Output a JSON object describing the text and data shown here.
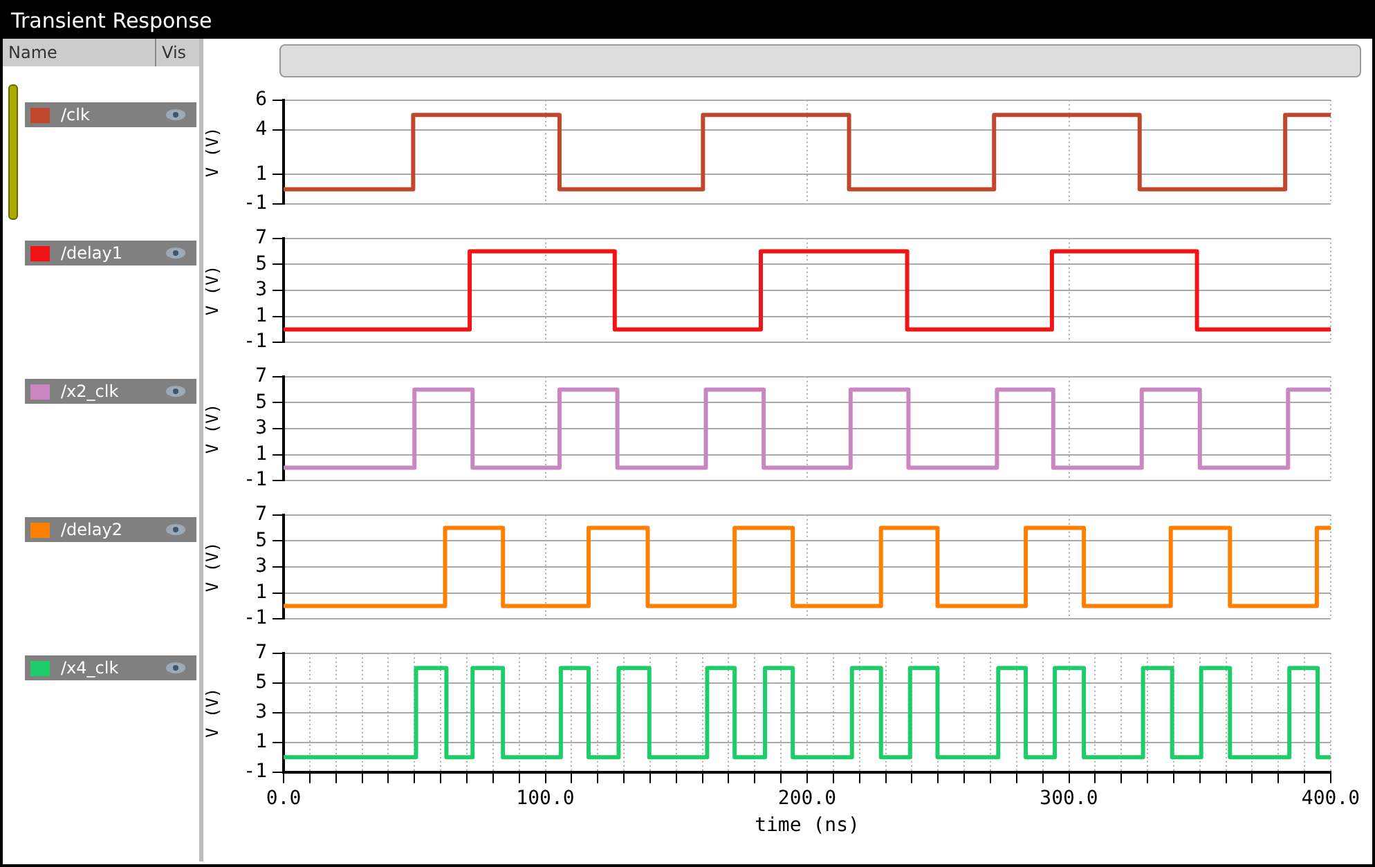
{
  "chart_data": [
    {
      "type": "step",
      "title": "Transient Response",
      "annotations": [
        "Name",
        "Vis"
      ],
      "ylabel": "V (V)",
      "xlim": [
        0,
        400
      ],
      "xticks": [
        0,
        100,
        200,
        300,
        400
      ],
      "ylim": [
        -1,
        6
      ],
      "yticks": [
        -1,
        1,
        4,
        6
      ],
      "grid": true,
      "legend": "left",
      "tick_labels": "y",
      "line_style": "solid",
      "marker": "none",
      "series": [
        {
          "name": "/clk",
          "color": "#c0462c",
          "x": [
            0,
            49.5,
            105.4,
            160.2,
            216,
            271.4,
            327,
            382.6,
            400
          ],
          "values": [
            0,
            5,
            0,
            5,
            0,
            5,
            0,
            5,
            5
          ]
        }
      ]
    },
    {
      "type": "step",
      "ylabel": "V (V)",
      "xlim": [
        0,
        400
      ],
      "xticks": [
        0,
        100,
        200,
        300,
        400
      ],
      "ylim": [
        -1,
        7
      ],
      "yticks": [
        -1,
        1,
        3,
        5,
        7
      ],
      "grid": true,
      "legend": "left",
      "tick_labels": "y",
      "line_style": "solid",
      "marker": "none",
      "series": [
        {
          "name": "/delay1",
          "color": "#f01414",
          "x": [
            0,
            71.1,
            126.5,
            182.3,
            238.2,
            293.5,
            348.9,
            400
          ],
          "values": [
            0,
            6,
            0,
            6,
            0,
            6,
            0,
            0
          ]
        }
      ]
    },
    {
      "type": "step",
      "ylabel": "V (V)",
      "xlim": [
        0,
        400
      ],
      "xticks": [
        0,
        100,
        200,
        300,
        400
      ],
      "ylim": [
        -1,
        7
      ],
      "yticks": [
        -1,
        1,
        3,
        5,
        7
      ],
      "grid": true,
      "legend": "left",
      "tick_labels": "y",
      "line_style": "solid",
      "marker": "none",
      "series": [
        {
          "name": "/x2_clk",
          "color": "#c986c0",
          "x": [
            0,
            50,
            72.2,
            105.4,
            127.5,
            161.3,
            183.4,
            216.6,
            238.7,
            272.5,
            294,
            327.8,
            350,
            383.7,
            400
          ],
          "values": [
            0,
            6,
            0,
            6,
            0,
            6,
            0,
            6,
            0,
            6,
            0,
            6,
            0,
            6,
            6
          ]
        }
      ]
    },
    {
      "type": "step",
      "ylabel": "V (V)",
      "xlim": [
        0,
        400
      ],
      "xticks": [
        0,
        100,
        200,
        300,
        400
      ],
      "ylim": [
        -1,
        7
      ],
      "yticks": [
        -1,
        1,
        3,
        5,
        7
      ],
      "grid": true,
      "legend": "left",
      "tick_labels": "y",
      "line_style": "solid",
      "marker": "none",
      "series": [
        {
          "name": "/delay2",
          "color": "#ff8000",
          "x": [
            0,
            61.7,
            83.8,
            116.5,
            139.1,
            172.3,
            194.5,
            228.2,
            249.8,
            283.5,
            305.7,
            338.9,
            361.5,
            394.7,
            400
          ],
          "values": [
            0,
            6,
            0,
            6,
            0,
            6,
            0,
            6,
            0,
            6,
            0,
            6,
            0,
            6,
            6
          ]
        }
      ]
    },
    {
      "type": "step",
      "ylabel": "V (V)",
      "xlabel": "time (ns)",
      "xlim": [
        0,
        400
      ],
      "xticks": [
        {
          "value": 0,
          "label": "0.0"
        },
        {
          "value": 10,
          "label": null
        },
        {
          "value": 20,
          "label": null
        },
        {
          "value": 30,
          "label": null
        },
        {
          "value": 40,
          "label": null
        },
        {
          "value": 50,
          "label": null
        },
        {
          "value": 60,
          "label": null
        },
        {
          "value": 70,
          "label": null
        },
        {
          "value": 80,
          "label": null
        },
        {
          "value": 90,
          "label": null
        },
        {
          "value": 100,
          "label": "100.0"
        },
        {
          "value": 110,
          "label": null
        },
        {
          "value": 120,
          "label": null
        },
        {
          "value": 130,
          "label": null
        },
        {
          "value": 140,
          "label": null
        },
        {
          "value": 150,
          "label": null
        },
        {
          "value": 160,
          "label": null
        },
        {
          "value": 170,
          "label": null
        },
        {
          "value": 180,
          "label": null
        },
        {
          "value": 190,
          "label": null
        },
        {
          "value": 200,
          "label": "200.0"
        },
        {
          "value": 210,
          "label": null
        },
        {
          "value": 220,
          "label": null
        },
        {
          "value": 230,
          "label": null
        },
        {
          "value": 240,
          "label": null
        },
        {
          "value": 250,
          "label": null
        },
        {
          "value": 260,
          "label": null
        },
        {
          "value": 270,
          "label": null
        },
        {
          "value": 280,
          "label": null
        },
        {
          "value": 290,
          "label": null
        },
        {
          "value": 300,
          "label": "300.0"
        },
        {
          "value": 310,
          "label": null
        },
        {
          "value": 320,
          "label": null
        },
        {
          "value": 330,
          "label": null
        },
        {
          "value": 340,
          "label": null
        },
        {
          "value": 350,
          "label": null
        },
        {
          "value": 360,
          "label": null
        },
        {
          "value": 370,
          "label": null
        },
        {
          "value": 380,
          "label": null
        },
        {
          "value": 390,
          "label": null
        },
        {
          "value": 400,
          "label": "400.0"
        }
      ],
      "ylim": [
        -1,
        7
      ],
      "yticks": [
        -1,
        1,
        3,
        5,
        7
      ],
      "grid": true,
      "legend": "left",
      "line_style": "solid",
      "marker": "none",
      "series": [
        {
          "name": "/x4_clk",
          "color": "#1fcc6a",
          "x": [
            0,
            50.6,
            62.2,
            72.2,
            83.8,
            105.9,
            116.5,
            128,
            139.7,
            161.8,
            172.3,
            183.9,
            194.5,
            217.1,
            228.2,
            239.3,
            249.8,
            273,
            283.5,
            294.6,
            305.7,
            328.3,
            339.4,
            350.5,
            361.5,
            384.2,
            395,
            400
          ],
          "values": [
            0,
            6,
            0,
            6,
            0,
            6,
            0,
            6,
            0,
            6,
            0,
            6,
            0,
            6,
            0,
            6,
            0,
            6,
            0,
            6,
            0,
            6,
            0,
            6,
            0,
            6,
            0,
            0
          ]
        }
      ]
    }
  ]
}
